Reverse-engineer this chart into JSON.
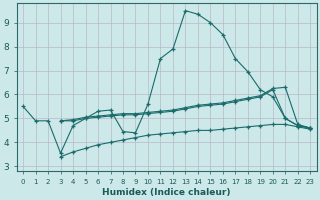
{
  "bg_color": "#cde8e8",
  "grid_color": "#b8b8c8",
  "line_color": "#1a6b6b",
  "xlabel": "Humidex (Indice chaleur)",
  "xlim": [
    -0.5,
    23.5
  ],
  "ylim": [
    2.8,
    9.8
  ],
  "xticks": [
    0,
    1,
    2,
    3,
    4,
    5,
    6,
    7,
    8,
    9,
    10,
    11,
    12,
    13,
    14,
    15,
    16,
    17,
    18,
    19,
    20,
    21,
    22,
    23
  ],
  "yticks": [
    3,
    4,
    5,
    6,
    7,
    8,
    9
  ],
  "curve1_x": [
    0,
    1,
    2,
    3,
    4,
    5,
    6,
    7,
    8,
    9,
    10,
    11,
    12,
    13,
    14,
    15,
    16,
    17,
    18,
    19,
    20,
    21,
    22,
    23
  ],
  "curve1_y": [
    5.5,
    4.9,
    4.9,
    3.55,
    4.7,
    5.0,
    5.3,
    5.35,
    4.45,
    4.4,
    5.6,
    7.5,
    7.9,
    9.5,
    9.35,
    9.0,
    8.5,
    7.5,
    6.95,
    6.2,
    5.9,
    5.0,
    4.7,
    4.6
  ],
  "curve2_x": [
    3,
    4,
    5,
    6,
    7,
    8,
    9,
    10,
    11,
    12,
    13,
    14,
    15,
    16,
    17,
    18,
    19,
    20,
    21,
    22,
    23
  ],
  "curve2_y": [
    4.9,
    4.9,
    5.0,
    5.05,
    5.1,
    5.15,
    5.15,
    5.2,
    5.25,
    5.3,
    5.4,
    5.5,
    5.55,
    5.6,
    5.7,
    5.8,
    5.9,
    6.2,
    5.0,
    4.7,
    4.6
  ],
  "curve3_x": [
    3,
    4,
    5,
    6,
    7,
    8,
    9,
    10,
    11,
    12,
    13,
    14,
    15,
    16,
    17,
    18,
    19,
    20,
    21,
    22,
    23
  ],
  "curve3_y": [
    3.4,
    3.6,
    3.75,
    3.9,
    4.0,
    4.1,
    4.2,
    4.3,
    4.35,
    4.4,
    4.45,
    4.5,
    4.5,
    4.55,
    4.6,
    4.65,
    4.7,
    4.75,
    4.75,
    4.65,
    4.55
  ],
  "curve4_x": [
    3,
    4,
    5,
    6,
    7,
    8,
    9,
    10,
    11,
    12,
    13,
    14,
    15,
    16,
    17,
    18,
    19,
    20,
    21,
    22,
    23
  ],
  "curve4_y": [
    4.9,
    4.95,
    5.05,
    5.1,
    5.15,
    5.2,
    5.2,
    5.25,
    5.3,
    5.35,
    5.45,
    5.55,
    5.6,
    5.65,
    5.75,
    5.85,
    5.95,
    6.25,
    6.3,
    4.75,
    4.6
  ]
}
